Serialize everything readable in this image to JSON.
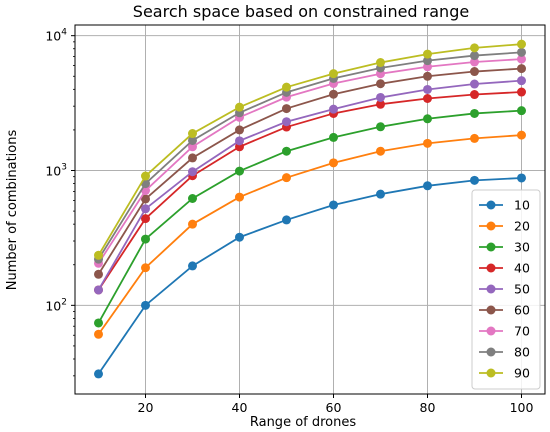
{
  "chart_data": {
    "type": "line",
    "title": "Search space based on constrained range",
    "xlabel": "Range of drones",
    "ylabel": "Number of combinations",
    "yscale": "log",
    "xlim": [
      5,
      105
    ],
    "ylim": [
      22,
      12000
    ],
    "x": [
      10,
      20,
      30,
      40,
      50,
      60,
      70,
      80,
      90,
      100
    ],
    "xticks": [
      20,
      40,
      60,
      80,
      100
    ],
    "yticks": [
      {
        "value": 100,
        "base": "10",
        "exp": "2"
      },
      {
        "value": 1000,
        "base": "10",
        "exp": "3"
      },
      {
        "value": 10000,
        "base": "10",
        "exp": "4"
      }
    ],
    "grid": true,
    "legend_position": "lower-right",
    "series": [
      {
        "name": "10",
        "color": "#1f77b4",
        "values": [
          31,
          100,
          196,
          320,
          430,
          555,
          668,
          770,
          845,
          880
        ]
      },
      {
        "name": "20",
        "color": "#ff7f0e",
        "values": [
          61,
          190,
          400,
          635,
          885,
          1140,
          1390,
          1590,
          1730,
          1830
        ]
      },
      {
        "name": "30",
        "color": "#2ca02c",
        "values": [
          74,
          310,
          620,
          990,
          1390,
          1760,
          2110,
          2420,
          2650,
          2780
        ]
      },
      {
        "name": "40",
        "color": "#d62728",
        "values": [
          130,
          440,
          915,
          1500,
          2100,
          2650,
          3100,
          3420,
          3660,
          3820
        ]
      },
      {
        "name": "50",
        "color": "#9467bd",
        "values": [
          130,
          520,
          980,
          1660,
          2300,
          2850,
          3480,
          3990,
          4380,
          4640
        ]
      },
      {
        "name": "60",
        "color": "#8c564b",
        "values": [
          170,
          615,
          1240,
          2000,
          2880,
          3680,
          4400,
          5000,
          5420,
          5700
        ]
      },
      {
        "name": "70",
        "color": "#e377c2",
        "values": [
          205,
          710,
          1500,
          2480,
          3500,
          4420,
          5220,
          5880,
          6380,
          6700
        ]
      },
      {
        "name": "80",
        "color": "#7f7f7f",
        "values": [
          220,
          800,
          1670,
          2680,
          3800,
          4820,
          5760,
          6530,
          7120,
          7520
        ]
      },
      {
        "name": "90",
        "color": "#bcbd22",
        "values": [
          235,
          910,
          1880,
          2950,
          4150,
          5230,
          6320,
          7300,
          8120,
          8650
        ]
      }
    ]
  }
}
